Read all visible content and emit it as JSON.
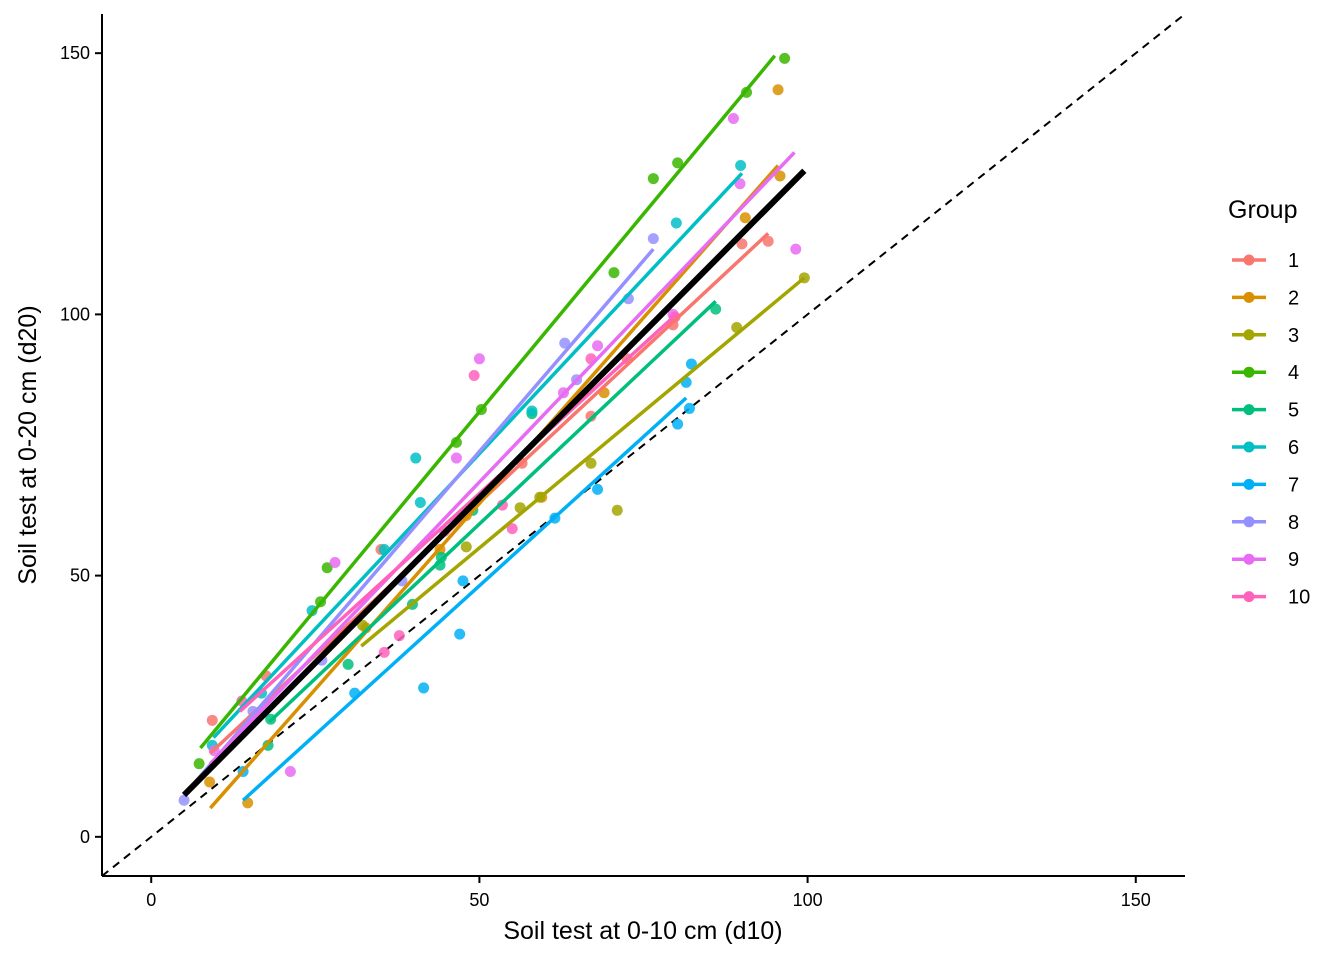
{
  "chart_data": {
    "type": "scatter",
    "title": "",
    "xlabel": "Soil test at 0-10 cm (d10)",
    "ylabel": "Soil test at 0-20 cm (d20)",
    "xlim": [
      -7.5,
      157.5
    ],
    "ylim": [
      -7.5,
      157.5
    ],
    "xticks": [
      0,
      50,
      100,
      150
    ],
    "yticks": [
      0,
      50,
      100,
      150
    ],
    "xtick_labels": [
      "0",
      "50",
      "100",
      "150"
    ],
    "ytick_labels": [
      "0",
      "50",
      "100",
      "150"
    ],
    "grid": false,
    "legend": {
      "title": "Group",
      "position": "right"
    },
    "reference_line": {
      "slope": 1,
      "intercept": 0,
      "style": "dashed",
      "color": "#000000"
    },
    "overall_fit": {
      "color": "#000000",
      "x": [
        5,
        99.5
      ],
      "y": [
        8,
        127.5
      ]
    },
    "series": [
      {
        "name": "1",
        "color": "#F8766D",
        "fit": {
          "x": [
            9,
            94
          ],
          "y": [
            16,
            115.5
          ]
        },
        "points": [
          [
            9.3,
            22.3
          ],
          [
            17.5,
            30.8
          ],
          [
            35,
            55
          ],
          [
            56.5,
            71.5
          ],
          [
            67,
            80.5
          ],
          [
            72.5,
            91.5
          ],
          [
            79.5,
            98
          ],
          [
            90,
            113.5
          ],
          [
            94,
            114
          ]
        ]
      },
      {
        "name": "2",
        "color": "#D89000",
        "fit": {
          "x": [
            9,
            95.5
          ],
          "y": [
            5.5,
            128.5
          ]
        },
        "points": [
          [
            8.9,
            10.5
          ],
          [
            14.7,
            6.5
          ],
          [
            32.7,
            40
          ],
          [
            44,
            55
          ],
          [
            48,
            61.5
          ],
          [
            59.5,
            65
          ],
          [
            69,
            85
          ],
          [
            90.5,
            118.5
          ],
          [
            95.5,
            143
          ],
          [
            95.8,
            126.5
          ]
        ]
      },
      {
        "name": "3",
        "color": "#A3A500",
        "fit": {
          "x": [
            32,
            99.5
          ],
          "y": [
            36.5,
            107
          ]
        },
        "points": [
          [
            32.2,
            40.5
          ],
          [
            48,
            55.5
          ],
          [
            56.2,
            63
          ],
          [
            59.2,
            65
          ],
          [
            67,
            71.5
          ],
          [
            71,
            62.5
          ],
          [
            89.2,
            97.5
          ],
          [
            99.5,
            107
          ]
        ]
      },
      {
        "name": "4",
        "color": "#39B600",
        "fit": {
          "x": [
            7.5,
            95
          ],
          "y": [
            17,
            149.5
          ]
        },
        "points": [
          [
            7.3,
            14
          ],
          [
            25.8,
            45
          ],
          [
            26.8,
            51.5
          ],
          [
            46.5,
            75.5
          ],
          [
            50.3,
            81.8
          ],
          [
            70.5,
            108
          ],
          [
            76.5,
            126
          ],
          [
            80.2,
            129
          ],
          [
            90.7,
            142.5
          ],
          [
            96.5,
            149
          ]
        ]
      },
      {
        "name": "5",
        "color": "#00BF7D",
        "fit": {
          "x": [
            18,
            86
          ],
          "y": [
            22,
            102.5
          ]
        },
        "points": [
          [
            17.8,
            17.5
          ],
          [
            18.2,
            22.5
          ],
          [
            30,
            33
          ],
          [
            39.8,
            44.5
          ],
          [
            44,
            52
          ],
          [
            44.2,
            53.5
          ],
          [
            49,
            62.5
          ],
          [
            58,
            81
          ],
          [
            86,
            101
          ]
        ]
      },
      {
        "name": "6",
        "color": "#00BFC4",
        "fit": {
          "x": [
            9.5,
            90
          ],
          "y": [
            19,
            127
          ]
        },
        "points": [
          [
            9.3,
            17.5
          ],
          [
            16.8,
            27.5
          ],
          [
            24.5,
            43.3
          ],
          [
            35.5,
            55
          ],
          [
            40.3,
            72.5
          ],
          [
            41,
            64
          ],
          [
            58,
            81.5
          ],
          [
            80,
            117.5
          ],
          [
            89.8,
            128.5
          ]
        ]
      },
      {
        "name": "7",
        "color": "#00B0F6",
        "fit": {
          "x": [
            14,
            81.5
          ],
          "y": [
            7,
            84
          ]
        },
        "points": [
          [
            14,
            12.5
          ],
          [
            31,
            27.5
          ],
          [
            41.5,
            28.5
          ],
          [
            47,
            38.8
          ],
          [
            47.5,
            49
          ],
          [
            61.5,
            61
          ],
          [
            68,
            66.5
          ],
          [
            80.2,
            79
          ],
          [
            81.5,
            87
          ],
          [
            82,
            82
          ],
          [
            82.3,
            90.5
          ]
        ]
      },
      {
        "name": "8",
        "color": "#9590FF",
        "fit": {
          "x": [
            5,
            76.5
          ],
          "y": [
            8,
            112.5
          ]
        },
        "points": [
          [
            5,
            7
          ],
          [
            15.5,
            24
          ],
          [
            26,
            33.8
          ],
          [
            38.2,
            49
          ],
          [
            63,
            94.5
          ],
          [
            64.8,
            87.5
          ],
          [
            72.7,
            103
          ],
          [
            76.5,
            114.5
          ]
        ]
      },
      {
        "name": "9",
        "color": "#E76BF3",
        "fit": {
          "x": [
            9,
            98
          ],
          "y": [
            14,
            131
          ]
        },
        "points": [
          [
            9.6,
            16.5
          ],
          [
            21.2,
            12.5
          ],
          [
            28,
            52.5
          ],
          [
            46.5,
            72.5
          ],
          [
            50,
            91.5
          ],
          [
            62.8,
            85
          ],
          [
            68,
            94
          ],
          [
            79.5,
            100
          ],
          [
            88.7,
            137.5
          ],
          [
            89.7,
            125
          ],
          [
            98.2,
            112.5
          ]
        ]
      },
      {
        "name": "10",
        "color": "#FF62BC",
        "fit": {
          "x": [
            13.5,
            80
          ],
          "y": [
            24,
            100
          ]
        },
        "points": [
          [
            13.8,
            26
          ],
          [
            35.5,
            35.3
          ],
          [
            37.8,
            38.5
          ],
          [
            44.7,
            58.5
          ],
          [
            49.2,
            88.3
          ],
          [
            53.5,
            63.5
          ],
          [
            55,
            59
          ],
          [
            67,
            91.5
          ],
          [
            79.8,
            99.5
          ]
        ]
      }
    ]
  }
}
